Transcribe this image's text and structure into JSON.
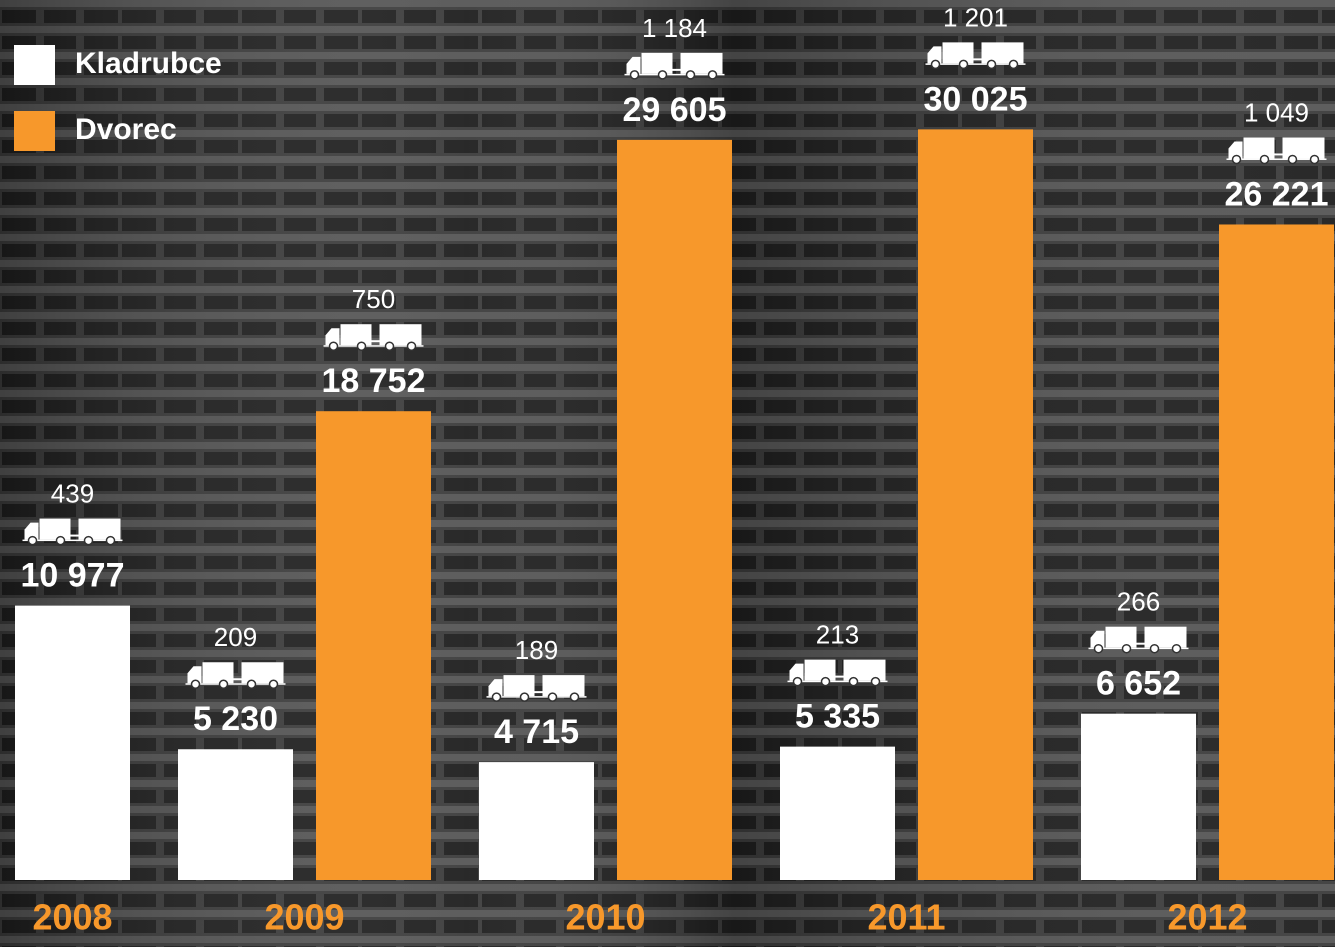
{
  "chart_data": {
    "type": "bar",
    "categories": [
      "2008",
      "2009",
      "2010",
      "2011",
      "2012"
    ],
    "series": [
      {
        "name": "Kladrubce",
        "color": "#ffffff",
        "values": [
          10977,
          5230,
          4715,
          5335,
          6652
        ],
        "value_labels": [
          "10 977",
          "5 230",
          "4 715",
          "5 335",
          "6 652"
        ],
        "trucks": [
          439,
          209,
          189,
          213,
          266
        ],
        "trucks_labels": [
          "439",
          "209",
          "189",
          "213",
          "266"
        ]
      },
      {
        "name": "Dvorec",
        "color": "#f7982b",
        "values": [
          null,
          18752,
          29605,
          30025,
          26221
        ],
        "value_labels": [
          null,
          "18 752",
          "29 605",
          "30 025",
          "26 221"
        ],
        "trucks": [
          null,
          750,
          1184,
          1201,
          1049
        ],
        "trucks_labels": [
          null,
          "750",
          "1 184",
          "1 201",
          "1 049"
        ]
      }
    ],
    "ylim": [
      0,
      30000
    ],
    "legend": "top-left"
  }
}
